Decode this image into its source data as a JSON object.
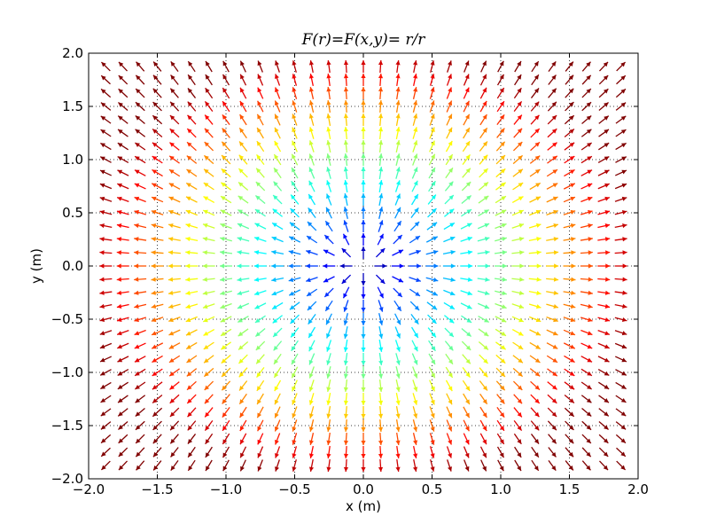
{
  "chart_data": {
    "type": "quiver",
    "title": "F(r)=F(x,y)= r/r",
    "xlabel": "x (m)",
    "ylabel": "y (m)",
    "xlim": [
      -2.0,
      2.0
    ],
    "ylim": [
      -2.0,
      2.0
    ],
    "xticks": [
      -2.0,
      -1.5,
      -1.0,
      -0.5,
      0.0,
      0.5,
      1.0,
      1.5,
      2.0
    ],
    "yticks": [
      -2.0,
      -1.5,
      -1.0,
      -0.5,
      0.0,
      0.5,
      1.0,
      1.5,
      2.0
    ],
    "xtick_labels": [
      "−2.0",
      "−1.5",
      "−1.0",
      "−0.5",
      "0.0",
      "0.5",
      "1.0",
      "1.5",
      "2.0"
    ],
    "ytick_labels": [
      "−2.0",
      "−1.5",
      "−1.0",
      "−0.5",
      "0.0",
      "0.5",
      "1.0",
      "1.5",
      "2.0"
    ],
    "grid": true,
    "field": "F = r_vec / r (unit radial vectors)",
    "grid_points": {
      "x_start": -1.875,
      "x_step": 0.125,
      "count": 31
    },
    "colormap": "jet, colored by distance r from origin (saturated above ~2.0)",
    "color_scale_max_r": 2.05
  }
}
